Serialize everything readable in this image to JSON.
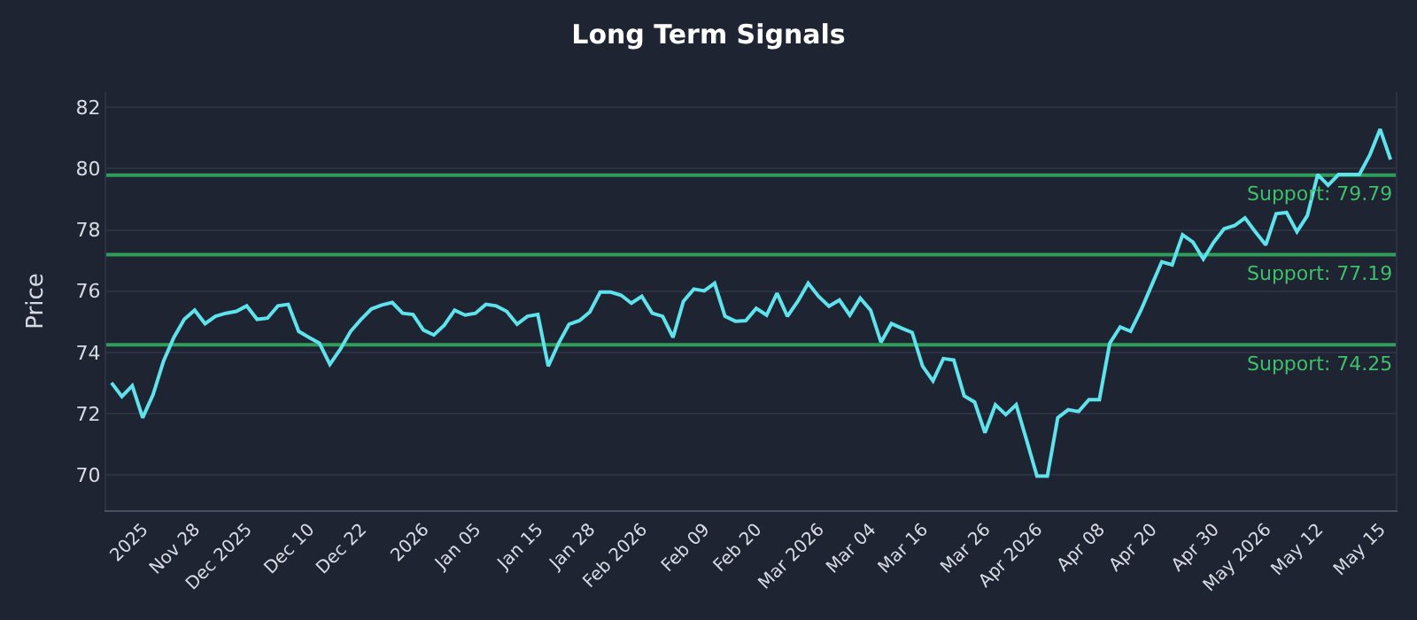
{
  "chart_data": {
    "type": "line",
    "title": "Long Term Signals",
    "ylabel": "Price",
    "categories": [
      null,
      null,
      null,
      "2025",
      null,
      null,
      null,
      null,
      "Nov 28",
      null,
      null,
      null,
      null,
      "Dec 2025",
      null,
      null,
      null,
      null,
      null,
      "Dec 10",
      null,
      null,
      null,
      null,
      "Dec 22",
      null,
      null,
      null,
      null,
      null,
      "2026",
      null,
      null,
      null,
      null,
      "Jan 05",
      null,
      null,
      null,
      null,
      null,
      "Jan 15",
      null,
      null,
      null,
      null,
      "Jan 28",
      null,
      null,
      null,
      null,
      "Feb 2026",
      null,
      null,
      null,
      null,
      null,
      "Feb 09",
      null,
      null,
      null,
      null,
      "Feb 20",
      null,
      null,
      null,
      null,
      null,
      "Mar 2026",
      null,
      null,
      null,
      null,
      "Mar 04",
      null,
      null,
      null,
      null,
      "Mar 16",
      null,
      null,
      null,
      null,
      null,
      "Mar 26",
      null,
      null,
      null,
      null,
      "Apr 2026",
      null,
      null,
      null,
      null,
      null,
      "Apr 08",
      null,
      null,
      null,
      null,
      "Apr 20",
      null,
      null,
      null,
      null,
      null,
      "Apr 30",
      null,
      null,
      null,
      null,
      "May 2026",
      null,
      null,
      null,
      null,
      "May 12",
      null,
      null,
      null,
      null,
      null,
      "May 15",
      null
    ],
    "series": [
      {
        "color": "#5ee3ec",
        "values": [
          73.01,
          72.56,
          72.91,
          71.87,
          72.62,
          73.71,
          74.49,
          75.08,
          75.38,
          74.94,
          75.18,
          75.28,
          75.34,
          75.52,
          75.08,
          75.12,
          75.52,
          75.57,
          74.69,
          74.49,
          74.3,
          73.61,
          74.1,
          74.69,
          75.08,
          75.42,
          75.55,
          75.63,
          75.28,
          75.24,
          74.73,
          74.57,
          74.89,
          75.38,
          75.22,
          75.28,
          75.57,
          75.52,
          75.34,
          74.92,
          75.18,
          75.24,
          73.55,
          74.3,
          74.92,
          75.04,
          75.32,
          75.97,
          75.97,
          75.87,
          75.61,
          75.83,
          75.28,
          75.18,
          74.49,
          75.67,
          76.07,
          76.01,
          76.26,
          75.18,
          75.02,
          75.04,
          75.44,
          75.22,
          75.93,
          75.18,
          75.67,
          76.26,
          75.83,
          75.51,
          75.71,
          75.22,
          75.77,
          75.38,
          74.33,
          74.94,
          74.79,
          74.65,
          73.55,
          73.07,
          73.8,
          73.75,
          72.58,
          72.38,
          71.38,
          72.29,
          71.97,
          72.29,
          71.14,
          69.96,
          69.96,
          71.87,
          72.13,
          72.07,
          72.46,
          72.46,
          74.3,
          74.83,
          74.69,
          75.38,
          76.17,
          76.96,
          76.86,
          77.84,
          77.6,
          77.05,
          77.6,
          78.04,
          78.14,
          78.39,
          77.94,
          77.51,
          78.53,
          78.57,
          77.94,
          78.47,
          79.81,
          79.46,
          79.81,
          79.81,
          79.81,
          80.44,
          81.29,
          80.3
        ]
      }
    ],
    "ylim": [
      68.85,
      82.5
    ],
    "yticks": [
      70,
      72,
      74,
      76,
      78,
      80,
      82
    ],
    "grid": "y",
    "marker": "none",
    "line_style": "solid",
    "ref_lines": [
      {
        "axis": "y",
        "value": 79.79,
        "label": "Support: 79.79",
        "color": "#2f9e5a"
      },
      {
        "axis": "y",
        "value": 77.19,
        "label": "Support: 77.19",
        "color": "#2f9e5a"
      },
      {
        "axis": "y",
        "value": 74.25,
        "label": "Support: 74.25",
        "color": "#2f9e5a"
      }
    ]
  }
}
